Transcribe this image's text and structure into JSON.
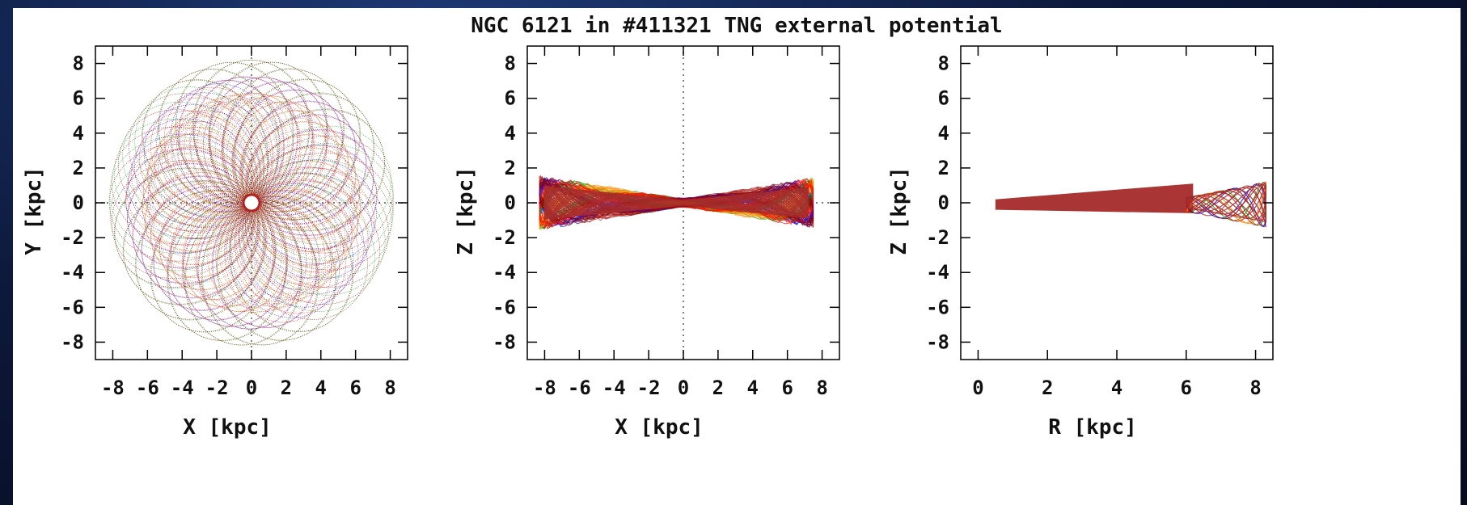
{
  "title": "NGC 6121 in #411321 TNG external potential",
  "chart_data": [
    {
      "type": "scatter",
      "panel": "x-y projection",
      "xlabel": "X [kpc]",
      "ylabel": "Y [kpc]",
      "xlim": [
        -9,
        9
      ],
      "ylim": [
        -9,
        9
      ],
      "xticks": [
        "-8",
        "-6",
        "-4",
        "-2",
        "0",
        "2",
        "4",
        "6",
        "8"
      ],
      "yticks": [
        "8",
        "6",
        "4",
        "2",
        "0",
        "-2",
        "-4",
        "-6",
        "-8"
      ],
      "zero_lines": true,
      "series_colors": [
        "#b22222",
        "#0000ff",
        "#00a000",
        "#ff8c00",
        "#ff0000",
        "#8b0000"
      ],
      "orbit": {
        "r_inner": 0.5,
        "r_outer_min": 6.3,
        "r_outer_max": 8.2,
        "petals": 28
      }
    },
    {
      "type": "scatter",
      "panel": "x-z projection",
      "xlabel": "X [kpc]",
      "ylabel": "Z [kpc]",
      "xlim": [
        -9,
        9
      ],
      "ylim": [
        -9,
        9
      ],
      "xticks": [
        "-8",
        "-6",
        "-4",
        "-2",
        "0",
        "2",
        "4",
        "6",
        "8"
      ],
      "yticks": [
        "8",
        "6",
        "4",
        "2",
        "0",
        "-2",
        "-4",
        "-6",
        "-8"
      ],
      "zero_lines": true,
      "series_colors": [
        "#b22222",
        "#0000ff",
        "#00a000",
        "#ff8c00",
        "#ff0000",
        "#8b0000"
      ],
      "extent": {
        "x_min": -8.3,
        "x_max": 7.5,
        "z_edge_max": 1.3
      }
    },
    {
      "type": "scatter",
      "panel": "R-z projection",
      "xlabel": "R [kpc]",
      "ylabel": "Z [kpc]",
      "xlim": [
        -0.5,
        8.5
      ],
      "ylim": [
        -9,
        9
      ],
      "xticks": [
        "0",
        "2",
        "4",
        "6",
        "8"
      ],
      "yticks": [
        "8",
        "6",
        "4",
        "2",
        "0",
        "-2",
        "-4",
        "-6",
        "-8"
      ],
      "zero_lines": false,
      "series_colors": [
        "#b22222",
        "#0000ff",
        "#00a000",
        "#ff8c00",
        "#ff0000",
        "#8b0000"
      ],
      "extent": {
        "r_min": 0.5,
        "r_max": 8.3,
        "z_edge_max": 1.3
      }
    }
  ]
}
